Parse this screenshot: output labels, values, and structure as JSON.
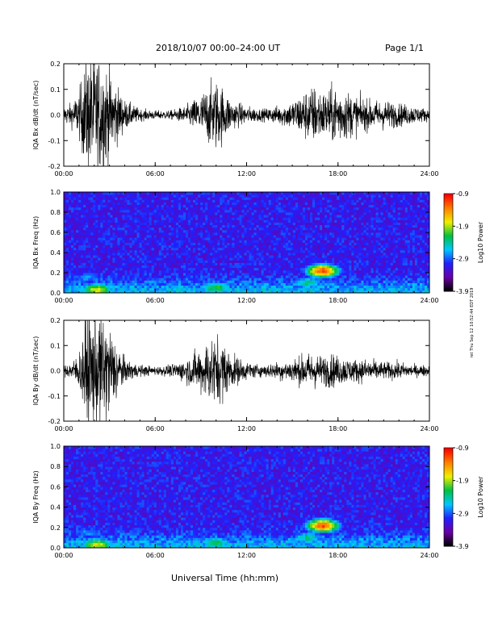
{
  "header": {
    "title": "2018/10/07   00:00–24:00 UT",
    "page": "Page 1/1"
  },
  "footer": {
    "xlabel": "Universal Time (hh:mm)",
    "stamp": "ret Thu Sep 12 10:52:44 EDT 2019"
  },
  "colors": {
    "trace": "#000000",
    "colormap": [
      "#000000",
      "#6a00a8",
      "#2020ff",
      "#00c8ff",
      "#00c040",
      "#f0f000",
      "#ff8000",
      "#ff0000"
    ]
  },
  "chart_data": [
    {
      "type": "line",
      "ylabel": "IQA Bx dB/dt (nT/sec)",
      "xticks": [
        "00:00",
        "06:00",
        "12:00",
        "18:00",
        "24:00"
      ],
      "yticks": [
        "-0.2",
        "-0.1",
        "0.0",
        "0.1",
        "0.2"
      ],
      "xlim": [
        0,
        24
      ],
      "ylim": [
        -0.2,
        0.2
      ],
      "series": [
        {
          "x_hours": [
            0,
            0.5,
            1.0,
            1.5,
            2.0,
            2.5,
            3.0,
            3.5,
            4.0,
            5.0,
            6.0,
            7.0,
            8.0,
            9.0,
            9.5,
            10.0,
            10.5,
            11.0,
            12.0,
            13.0,
            14.0,
            15.0,
            16.0,
            16.5,
            17.0,
            17.5,
            18.0,
            19.0,
            20.0,
            21.0,
            22.0,
            23.0,
            24.0
          ],
          "amplitude": [
            0.03,
            0.04,
            0.08,
            0.2,
            0.2,
            0.2,
            0.15,
            0.1,
            0.05,
            0.02,
            0.015,
            0.015,
            0.03,
            0.07,
            0.1,
            0.12,
            0.09,
            0.05,
            0.03,
            0.02,
            0.03,
            0.05,
            0.09,
            0.1,
            0.08,
            0.09,
            0.1,
            0.07,
            0.05,
            0.05,
            0.04,
            0.03,
            0.02
          ]
        }
      ]
    },
    {
      "type": "heatmap",
      "ylabel": "IQA Bx Freq (Hz)",
      "colorbar_label": "Log10 Power",
      "colorbar_ticks": [
        "-0.9",
        "-1.9",
        "-2.9",
        "-3.9"
      ],
      "clim": [
        -3.9,
        -0.9
      ],
      "xticks": [
        "00:00",
        "06:00",
        "12:00",
        "18:00",
        "24:00"
      ],
      "yticks": [
        "0.0",
        "0.2",
        "0.4",
        "0.6",
        "0.8",
        "1.0"
      ],
      "xlim": [
        0,
        24
      ],
      "ylim": [
        0,
        1.0
      ],
      "features": [
        {
          "t": 2.2,
          "f": 0.03,
          "power": -1.9
        },
        {
          "t": 1.5,
          "f": 0.15,
          "power": -2.9
        },
        {
          "t": 10.0,
          "f": 0.05,
          "power": -2.3
        },
        {
          "t": 17.0,
          "f": 0.22,
          "power": -1.3
        },
        {
          "t": 16.0,
          "f": 0.1,
          "power": -2.5
        }
      ]
    },
    {
      "type": "line",
      "ylabel": "IQA By dB/dt (nT/sec)",
      "xticks": [
        "00:00",
        "06:00",
        "12:00",
        "18:00",
        "24:00"
      ],
      "yticks": [
        "-0.2",
        "-0.1",
        "0.0",
        "0.1",
        "0.2"
      ],
      "xlim": [
        0,
        24
      ],
      "ylim": [
        -0.2,
        0.2
      ],
      "series": [
        {
          "x_hours": [
            0,
            0.5,
            1.0,
            1.5,
            2.0,
            2.5,
            3.0,
            3.5,
            4.0,
            5.0,
            6.0,
            7.0,
            8.0,
            9.0,
            9.5,
            10.0,
            10.5,
            11.0,
            12.0,
            13.0,
            14.0,
            15.0,
            16.0,
            16.5,
            17.0,
            17.5,
            18.0,
            19.0,
            20.0,
            21.0,
            22.0,
            23.0,
            24.0
          ],
          "amplitude": [
            0.02,
            0.03,
            0.06,
            0.2,
            0.2,
            0.2,
            0.16,
            0.1,
            0.04,
            0.02,
            0.015,
            0.02,
            0.04,
            0.08,
            0.11,
            0.12,
            0.1,
            0.06,
            0.03,
            0.02,
            0.03,
            0.04,
            0.06,
            0.06,
            0.05,
            0.06,
            0.05,
            0.04,
            0.04,
            0.03,
            0.03,
            0.02,
            0.02
          ]
        }
      ]
    },
    {
      "type": "heatmap",
      "ylabel": "IQA By Freq (Hz)",
      "colorbar_label": "Log10 Power",
      "colorbar_ticks": [
        "-0.9",
        "-1.9",
        "-2.9",
        "-3.9"
      ],
      "clim": [
        -3.9,
        -0.9
      ],
      "xticks": [
        "00:00",
        "06:00",
        "12:00",
        "18:00",
        "24:00"
      ],
      "yticks": [
        "0.0",
        "0.2",
        "0.4",
        "0.6",
        "0.8",
        "1.0"
      ],
      "xlim": [
        0,
        24
      ],
      "ylim": [
        0,
        1.0
      ],
      "features": [
        {
          "t": 2.2,
          "f": 0.03,
          "power": -1.9
        },
        {
          "t": 1.5,
          "f": 0.15,
          "power": -2.9
        },
        {
          "t": 10.0,
          "f": 0.05,
          "power": -2.4
        },
        {
          "t": 17.0,
          "f": 0.22,
          "power": -1.3
        },
        {
          "t": 16.0,
          "f": 0.1,
          "power": -2.5
        }
      ]
    }
  ]
}
